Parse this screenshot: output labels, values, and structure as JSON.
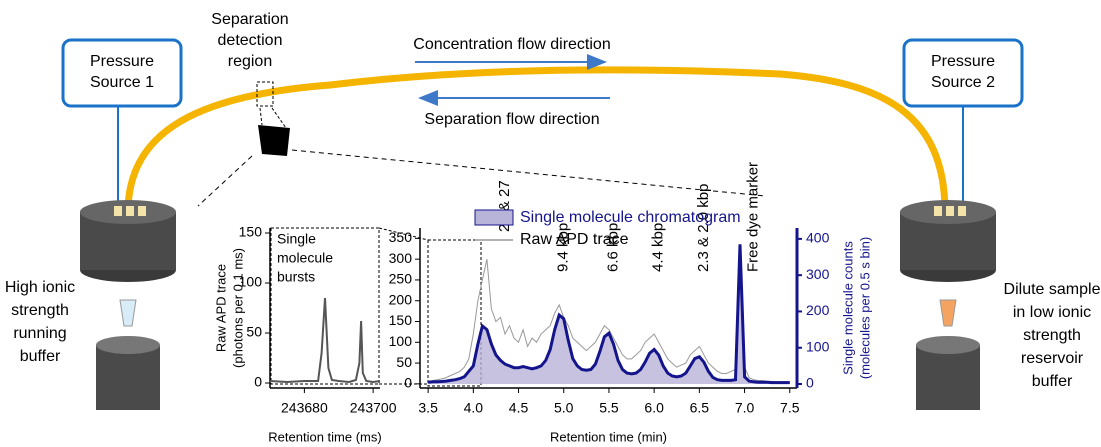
{
  "diagram": {
    "pressure_source_1": [
      "Pressure",
      "Source 1"
    ],
    "pressure_source_2": [
      "Pressure",
      "Source 2"
    ],
    "detection_region": [
      "Separation",
      "detection",
      "region"
    ],
    "concentration_flow": "Concentration flow direction",
    "separation_flow": "Separation flow direction",
    "left_buffer": [
      "High ionic",
      "strength",
      "running",
      "buffer"
    ],
    "right_buffer": [
      "Dilute sample",
      "in low ionic",
      "strength",
      "reservoir",
      "buffer"
    ]
  },
  "chart_data": [
    {
      "type": "line",
      "annotation": [
        "Single",
        "molecule",
        "bursts"
      ],
      "xlabel": "Retention time (ms)",
      "ylabel": [
        "Raw APD trace",
        "(photons per 0.1 ms)"
      ],
      "xlim": [
        243670,
        243702
      ],
      "xticks": [
        243680,
        243700
      ],
      "ylim": [
        -5,
        155
      ],
      "yticks": [
        0,
        50,
        100,
        150
      ],
      "x": [
        243670,
        243675,
        243680,
        243684,
        243685,
        243686,
        243687,
        243688,
        243690,
        243693,
        243695,
        243696,
        243696.5,
        243697,
        243698,
        243700,
        243702
      ],
      "series": [
        {
          "color": "#555555",
          "values": [
            2,
            1,
            2,
            2,
            30,
            85,
            15,
            3,
            2,
            1,
            3,
            20,
            62,
            10,
            2,
            1,
            2
          ]
        }
      ]
    },
    {
      "type": "line",
      "xlabel": "Retention time (min)",
      "y2label": [
        "Single molecule counts",
        "(molecules per 0.5 s bin)"
      ],
      "xlim": [
        3.41,
        7.58
      ],
      "xticks": [
        3.5,
        {
          "value": 4,
          "label": "4.0"
        },
        4.5,
        {
          "value": 5,
          "label": "5.0"
        },
        5.5,
        {
          "value": 6,
          "label": "6.0"
        },
        6.5,
        {
          "value": 7,
          "label": "7.0"
        },
        7.5
      ],
      "ylim": [
        -10,
        375
      ],
      "yticks": [
        0,
        50,
        100,
        150,
        200,
        250,
        300,
        350
      ],
      "y2lim": [
        -11,
        430
      ],
      "y2ticks": [
        0,
        100,
        200,
        300,
        400
      ],
      "annotations": [
        "23 & 27",
        "9.4 kbp",
        "6.6 kbp",
        "4.4 kbp",
        "2.3 & 2.0 kbp",
        "Free dye marker"
      ],
      "x": [
        3.5,
        3.55,
        3.6,
        3.65,
        3.7,
        3.75,
        3.8,
        3.85,
        3.9,
        3.95,
        4.0,
        4.05,
        4.1,
        4.15,
        4.2,
        4.25,
        4.3,
        4.35,
        4.4,
        4.45,
        4.5,
        4.55,
        4.6,
        4.65,
        4.7,
        4.75,
        4.8,
        4.85,
        4.9,
        4.95,
        5.0,
        5.05,
        5.1,
        5.15,
        5.2,
        5.25,
        5.3,
        5.35,
        5.4,
        5.45,
        5.5,
        5.55,
        5.6,
        5.65,
        5.7,
        5.75,
        5.8,
        5.85,
        5.9,
        5.95,
        6.0,
        6.05,
        6.1,
        6.15,
        6.2,
        6.25,
        6.3,
        6.35,
        6.4,
        6.45,
        6.5,
        6.55,
        6.6,
        6.65,
        6.7,
        6.75,
        6.8,
        6.85,
        6.9,
        6.95,
        7.0,
        7.05,
        7.1,
        7.15,
        7.2,
        7.25,
        7.3,
        7.35,
        7.4,
        7.45,
        7.5
      ],
      "series": [
        {
          "name": "Raw APD trace",
          "color": "#999999",
          "values": [
            5,
            8,
            10,
            12,
            15,
            20,
            25,
            30,
            40,
            60,
            120,
            200,
            250,
            300,
            180,
            150,
            160,
            120,
            140,
            110,
            100,
            130,
            90,
            110,
            100,
            120,
            130,
            140,
            170,
            190,
            160,
            140,
            110,
            100,
            90,
            80,
            90,
            100,
            120,
            140,
            130,
            110,
            90,
            70,
            60,
            60,
            70,
            80,
            100,
            110,
            120,
            100,
            80,
            60,
            50,
            40,
            45,
            50,
            70,
            80,
            90,
            70,
            50,
            40,
            30,
            25,
            25,
            30,
            35,
            330,
            40,
            15,
            10,
            8,
            8,
            6,
            6,
            5,
            5,
            5,
            5
          ]
        },
        {
          "name": "Single molecule chromatogram",
          "color": "#14148c",
          "fill": "#b8b3d8",
          "axis": "y2",
          "values": [
            5,
            6,
            6,
            7,
            8,
            10,
            12,
            15,
            20,
            35,
            50,
            110,
            160,
            150,
            110,
            80,
            65,
            55,
            50,
            45,
            45,
            48,
            45,
            42,
            45,
            50,
            65,
            95,
            150,
            190,
            180,
            120,
            70,
            50,
            40,
            38,
            40,
            55,
            90,
            130,
            140,
            110,
            65,
            40,
            30,
            28,
            30,
            40,
            60,
            85,
            95,
            80,
            50,
            30,
            22,
            20,
            22,
            30,
            50,
            70,
            75,
            60,
            35,
            18,
            12,
            10,
            10,
            10,
            12,
            385,
            20,
            8,
            6,
            5,
            5,
            5,
            4,
            4,
            4,
            4,
            4
          ]
        }
      ]
    }
  ]
}
